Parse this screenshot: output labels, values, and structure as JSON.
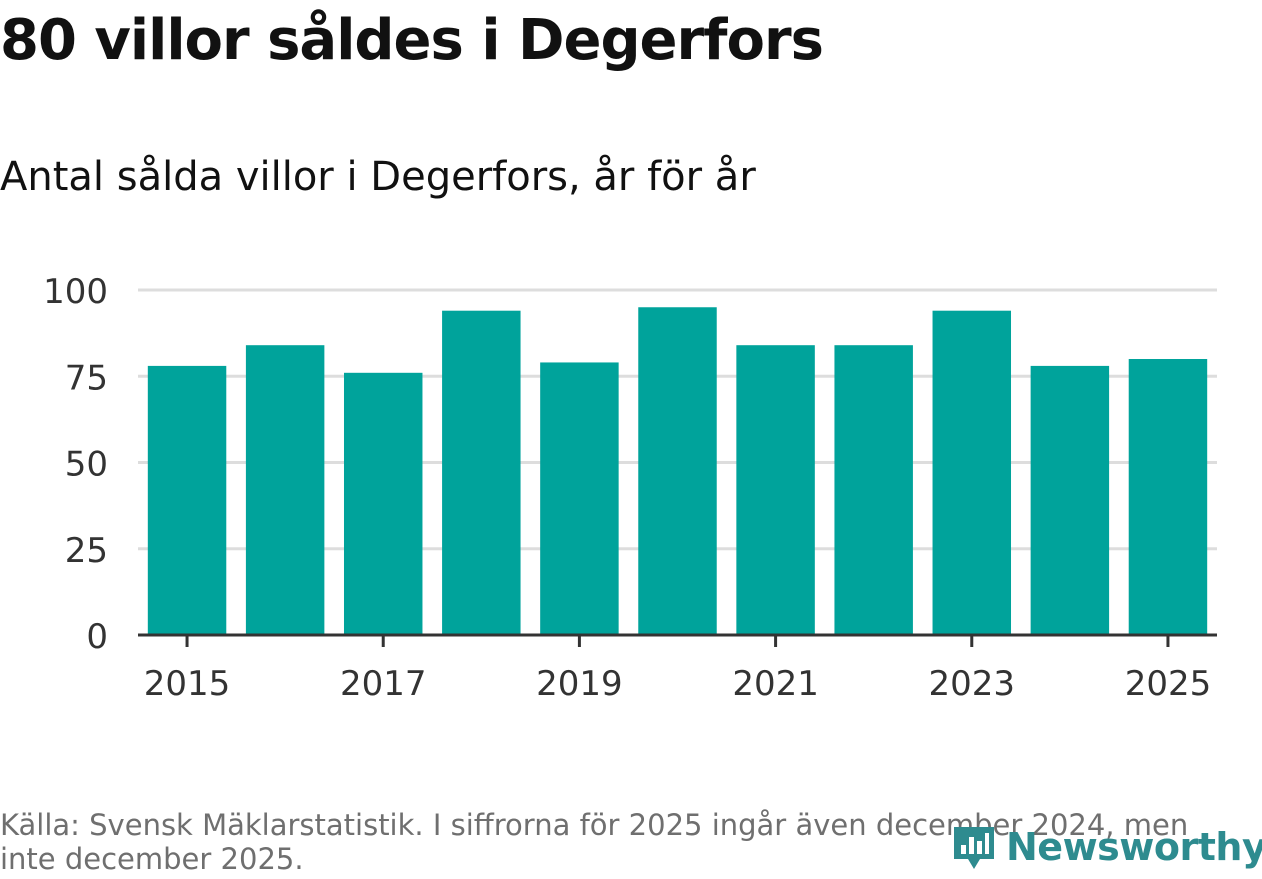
{
  "title": "80 villor såldes i Degerfors",
  "subtitle": "Antal sålda villor i Degerfors, år för år",
  "source": "Källa: Svensk Mäklarstatistik. I siffrorna för 2025 ingår även december 2024, men inte december 2025.",
  "logo": "Newsworthy",
  "colors": {
    "bar": "#00a39b",
    "grid": "#dddddd",
    "axis": "#333333",
    "logo": "#2e8b8f"
  },
  "chart_data": {
    "type": "bar",
    "categories": [
      "2015",
      "2016",
      "2017",
      "2018",
      "2019",
      "2020",
      "2021",
      "2022",
      "2023",
      "2024",
      "2025"
    ],
    "values": [
      78,
      84,
      76,
      94,
      79,
      95,
      84,
      84,
      94,
      78,
      80
    ],
    "x_tick_labels": [
      "2015",
      "2017",
      "2019",
      "2021",
      "2023",
      "2025"
    ],
    "y_ticks": [
      "0",
      "25",
      "50",
      "75",
      "100"
    ],
    "ylim": [
      0,
      100
    ],
    "xlabel": "",
    "ylabel": "",
    "grid": true
  }
}
